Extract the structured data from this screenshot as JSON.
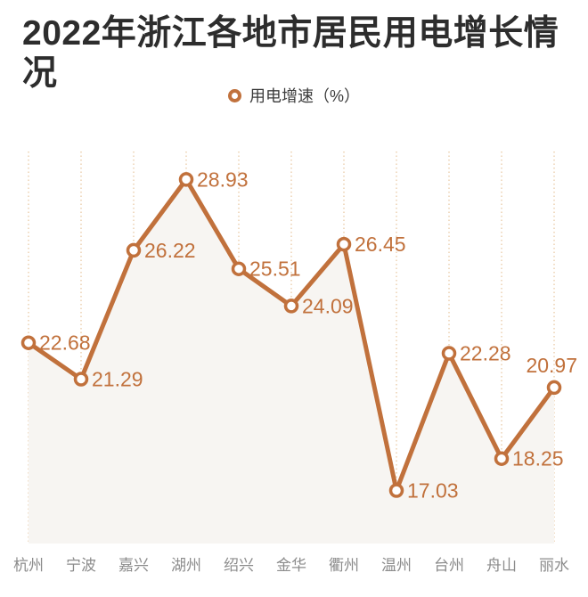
{
  "title": "2022年浙江各地市居民用电增长情况",
  "legend": {
    "label": "用电增速（%）"
  },
  "colors": {
    "accent": "#c1713c",
    "grid": "#e9c9a5",
    "area_fill": "#f7f5f2",
    "title_text": "#2d2d2d",
    "axis_label": "#8c8c8c",
    "marker_fill": "#ffffff"
  },
  "chart_data": {
    "type": "line",
    "title": "2022年浙江各地市居民用电增长情况",
    "series_name": "用电增速（%）",
    "categories": [
      "杭州",
      "宁波",
      "嘉兴",
      "湖州",
      "绍兴",
      "金华",
      "衢州",
      "温州",
      "台州",
      "舟山",
      "丽水"
    ],
    "values": [
      22.68,
      21.29,
      26.22,
      28.93,
      25.51,
      24.09,
      26.45,
      17.03,
      22.28,
      18.25,
      20.97
    ],
    "value_labels": [
      "22.68",
      "21.29",
      "26.22",
      "28.93",
      "25.51",
      "24.09",
      "26.45",
      "17.03",
      "22.28",
      "18.25",
      "20.97"
    ],
    "label_positions": [
      "right",
      "right",
      "right",
      "right",
      "right",
      "right",
      "right",
      "right",
      "right",
      "right",
      "above-left"
    ],
    "ylim": [
      15,
      30
    ],
    "xlabel": "",
    "ylabel": "",
    "grid": "vertical-dotted",
    "legend_position": "top-center",
    "marker": "hollow-circle",
    "area_under_line": true
  }
}
